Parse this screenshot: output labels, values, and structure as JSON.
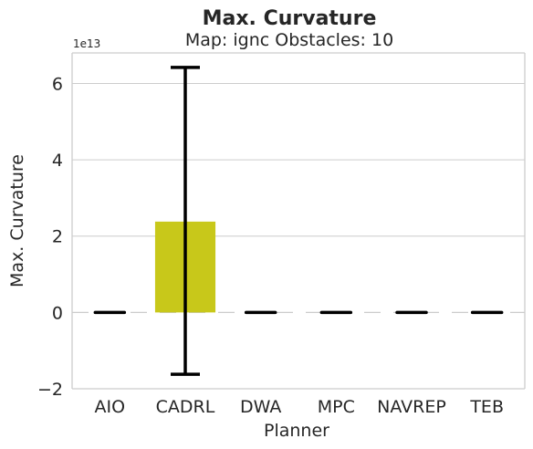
{
  "chart_data": {
    "type": "bar",
    "title": "Max. Curvature",
    "subtitle": "Map: ignc Obstacles: 10",
    "xlabel": "Planner",
    "ylabel": "Max. Curvature",
    "y_offset_label": "1e13",
    "y_scale": 10000000000000.0,
    "categories": [
      "AIO",
      "CADRL",
      "DWA",
      "MPC",
      "NAVREP",
      "TEB"
    ],
    "values": [
      0.0,
      2.38,
      0.0,
      0.0,
      0.0,
      0.0
    ],
    "error_low": [
      0.0,
      -1.62,
      0.0,
      0.0,
      0.0,
      0.0
    ],
    "error_high": [
      0.0,
      6.42,
      0.0,
      0.0,
      0.0,
      0.0
    ],
    "ylim": [
      -2.0,
      6.8
    ],
    "yticks": [
      -2,
      0,
      2,
      4,
      6
    ],
    "ytick_labels": [
      "−2",
      "0",
      "2",
      "4",
      "6"
    ],
    "grid": true,
    "bar_color": "#c8c81a",
    "errorbar_color": "#000000",
    "grid_color": "#cccccc",
    "zero_line_color": "#cccccc"
  }
}
